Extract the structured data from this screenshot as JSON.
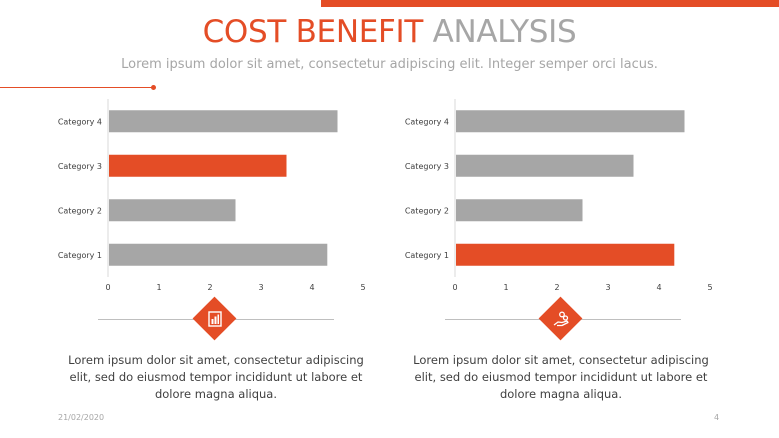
{
  "slide": {
    "title_accent": "COST BENEFIT",
    "title_rest": "ANALYSIS",
    "subtitle": "Lorem ipsum dolor sit amet, consectetur adipiscing elit. Integer semper orci lacus.",
    "date": "21/02/2020",
    "page_number": "4"
  },
  "colors": {
    "accent": "#e44d26",
    "bar_gray": "#a6a6a6",
    "text": "#404040",
    "muted": "#a6a6a6"
  },
  "panels": [
    {
      "icon": "document-chart-icon",
      "caption": "Lorem ipsum dolor sit amet, consectetur adipiscing elit, sed do eiusmod tempor incididunt ut labore et dolore magna aliqua."
    },
    {
      "icon": "hand-coins-icon",
      "caption": "Lorem ipsum dolor sit amet, consectetur adipiscing elit, sed do eiusmod tempor incididunt ut labore et dolore magna aliqua."
    }
  ],
  "chart_data": [
    {
      "type": "bar",
      "orientation": "horizontal",
      "categories": [
        "Category 1",
        "Category 2",
        "Category 3",
        "Category 4"
      ],
      "values": [
        4.3,
        2.5,
        3.5,
        4.5
      ],
      "highlight": "Category 3",
      "xlim": [
        0,
        5
      ],
      "xticks": [
        0,
        1,
        2,
        3,
        4,
        5
      ],
      "grid": false,
      "legend": "none"
    },
    {
      "type": "bar",
      "orientation": "horizontal",
      "categories": [
        "Category 1",
        "Category 2",
        "Category 3",
        "Category 4"
      ],
      "values": [
        4.3,
        2.5,
        3.5,
        4.5
      ],
      "highlight": "Category 1",
      "xlim": [
        0,
        5
      ],
      "xticks": [
        0,
        1,
        2,
        3,
        4,
        5
      ],
      "grid": false,
      "legend": "none"
    }
  ]
}
